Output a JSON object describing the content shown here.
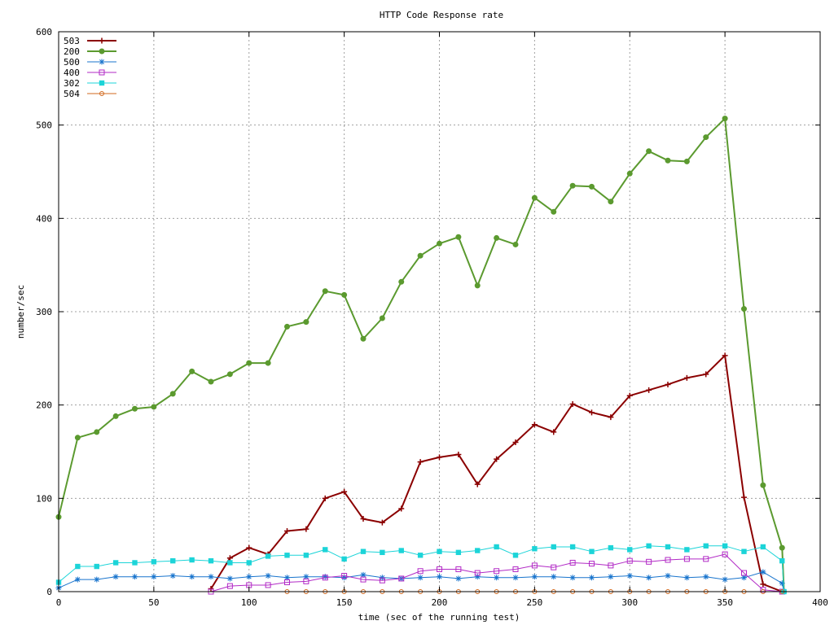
{
  "chart_data": {
    "type": "line",
    "title": "HTTP Code Response rate",
    "xlabel": "time (sec of the running test)",
    "ylabel": "number/sec",
    "xlim": [
      0,
      400
    ],
    "ylim": [
      0,
      600
    ],
    "xticks": [
      0,
      50,
      100,
      150,
      200,
      250,
      300,
      350,
      400
    ],
    "yticks": [
      0,
      100,
      200,
      300,
      400,
      500,
      600
    ],
    "grid": true,
    "legend_position": "top-left",
    "series": [
      {
        "name": "503",
        "color": "#8b0000",
        "marker": "plus",
        "width": 2,
        "points": [
          [
            80,
            3
          ],
          [
            90,
            36
          ],
          [
            100,
            47
          ],
          [
            110,
            40
          ],
          [
            120,
            65
          ],
          [
            130,
            67
          ],
          [
            140,
            100
          ],
          [
            150,
            107
          ],
          [
            160,
            78
          ],
          [
            170,
            74
          ],
          [
            180,
            89
          ],
          [
            190,
            139
          ],
          [
            200,
            144
          ],
          [
            210,
            147
          ],
          [
            220,
            115
          ],
          [
            230,
            142
          ],
          [
            240,
            160
          ],
          [
            250,
            179
          ],
          [
            260,
            171
          ],
          [
            270,
            201
          ],
          [
            280,
            192
          ],
          [
            290,
            187
          ],
          [
            300,
            210
          ],
          [
            310,
            216
          ],
          [
            320,
            222
          ],
          [
            330,
            229
          ],
          [
            340,
            233
          ],
          [
            350,
            253
          ],
          [
            360,
            101
          ],
          [
            370,
            8
          ],
          [
            380,
            0
          ]
        ]
      },
      {
        "name": "200",
        "color": "#5b9a2f",
        "marker": "filled-circle",
        "width": 2,
        "points": [
          [
            0,
            80
          ],
          [
            10,
            165
          ],
          [
            20,
            171
          ],
          [
            30,
            188
          ],
          [
            40,
            196
          ],
          [
            50,
            198
          ],
          [
            60,
            212
          ],
          [
            70,
            236
          ],
          [
            80,
            225
          ],
          [
            90,
            233
          ],
          [
            100,
            245
          ],
          [
            110,
            245
          ],
          [
            120,
            284
          ],
          [
            130,
            289
          ],
          [
            140,
            322
          ],
          [
            150,
            318
          ],
          [
            160,
            271
          ],
          [
            170,
            293
          ],
          [
            180,
            332
          ],
          [
            190,
            360
          ],
          [
            200,
            373
          ],
          [
            210,
            380
          ],
          [
            220,
            328
          ],
          [
            230,
            379
          ],
          [
            240,
            372
          ],
          [
            250,
            422
          ],
          [
            260,
            407
          ],
          [
            270,
            435
          ],
          [
            280,
            434
          ],
          [
            290,
            418
          ],
          [
            300,
            448
          ],
          [
            310,
            472
          ],
          [
            320,
            462
          ],
          [
            330,
            461
          ],
          [
            340,
            487
          ],
          [
            350,
            507
          ],
          [
            360,
            303
          ],
          [
            370,
            114
          ],
          [
            380,
            47
          ],
          [
            381,
            0
          ]
        ]
      },
      {
        "name": "500",
        "color": "#1874cd",
        "marker": "asterisk",
        "width": 1,
        "points": [
          [
            0,
            4
          ],
          [
            10,
            13
          ],
          [
            20,
            13
          ],
          [
            30,
            16
          ],
          [
            40,
            16
          ],
          [
            50,
            16
          ],
          [
            60,
            17
          ],
          [
            70,
            16
          ],
          [
            80,
            16
          ],
          [
            90,
            14
          ],
          [
            100,
            16
          ],
          [
            110,
            17
          ],
          [
            120,
            15
          ],
          [
            130,
            16
          ],
          [
            140,
            16
          ],
          [
            150,
            15
          ],
          [
            160,
            18
          ],
          [
            170,
            15
          ],
          [
            180,
            14
          ],
          [
            190,
            15
          ],
          [
            200,
            16
          ],
          [
            210,
            14
          ],
          [
            220,
            16
          ],
          [
            230,
            15
          ],
          [
            240,
            15
          ],
          [
            250,
            16
          ],
          [
            260,
            16
          ],
          [
            270,
            15
          ],
          [
            280,
            15
          ],
          [
            290,
            16
          ],
          [
            300,
            17
          ],
          [
            310,
            15
          ],
          [
            320,
            17
          ],
          [
            330,
            15
          ],
          [
            340,
            16
          ],
          [
            350,
            13
          ],
          [
            360,
            15
          ],
          [
            370,
            21
          ],
          [
            380,
            9
          ],
          [
            381,
            0
          ]
        ]
      },
      {
        "name": "400",
        "color": "#b22ac6",
        "marker": "open-square",
        "width": 1,
        "points": [
          [
            80,
            0
          ],
          [
            90,
            6
          ],
          [
            100,
            7
          ],
          [
            110,
            7
          ],
          [
            120,
            10
          ],
          [
            130,
            11
          ],
          [
            140,
            15
          ],
          [
            150,
            17
          ],
          [
            160,
            13
          ],
          [
            170,
            12
          ],
          [
            180,
            14
          ],
          [
            190,
            22
          ],
          [
            200,
            24
          ],
          [
            210,
            24
          ],
          [
            220,
            20
          ],
          [
            230,
            22
          ],
          [
            240,
            24
          ],
          [
            250,
            28
          ],
          [
            260,
            26
          ],
          [
            270,
            31
          ],
          [
            280,
            30
          ],
          [
            290,
            28
          ],
          [
            300,
            33
          ],
          [
            310,
            32
          ],
          [
            320,
            34
          ],
          [
            330,
            35
          ],
          [
            340,
            35
          ],
          [
            350,
            40
          ],
          [
            360,
            20
          ],
          [
            370,
            2
          ],
          [
            380,
            0
          ]
        ]
      },
      {
        "name": "302",
        "color": "#1cd4d8",
        "marker": "filled-square",
        "width": 1,
        "points": [
          [
            0,
            10
          ],
          [
            10,
            27
          ],
          [
            20,
            27
          ],
          [
            30,
            31
          ],
          [
            40,
            31
          ],
          [
            50,
            32
          ],
          [
            60,
            33
          ],
          [
            70,
            34
          ],
          [
            80,
            33
          ],
          [
            90,
            31
          ],
          [
            100,
            31
          ],
          [
            110,
            38
          ],
          [
            120,
            39
          ],
          [
            130,
            39
          ],
          [
            140,
            45
          ],
          [
            150,
            35
          ],
          [
            160,
            43
          ],
          [
            170,
            42
          ],
          [
            180,
            44
          ],
          [
            190,
            39
          ],
          [
            200,
            43
          ],
          [
            210,
            42
          ],
          [
            220,
            44
          ],
          [
            230,
            48
          ],
          [
            240,
            39
          ],
          [
            250,
            46
          ],
          [
            260,
            48
          ],
          [
            270,
            48
          ],
          [
            280,
            43
          ],
          [
            290,
            47
          ],
          [
            300,
            45
          ],
          [
            310,
            49
          ],
          [
            320,
            48
          ],
          [
            330,
            45
          ],
          [
            340,
            49
          ],
          [
            350,
            49
          ],
          [
            360,
            43
          ],
          [
            370,
            48
          ],
          [
            380,
            33
          ],
          [
            381,
            0
          ]
        ]
      },
      {
        "name": "504",
        "color": "#d2691e",
        "marker": "open-circle",
        "width": 1,
        "points": [
          [
            120,
            0
          ],
          [
            130,
            0
          ],
          [
            140,
            0
          ],
          [
            150,
            0
          ],
          [
            160,
            0
          ],
          [
            170,
            0
          ],
          [
            180,
            0
          ],
          [
            190,
            0
          ],
          [
            200,
            0
          ],
          [
            210,
            0
          ],
          [
            220,
            0
          ],
          [
            230,
            0
          ],
          [
            240,
            0
          ],
          [
            250,
            0
          ],
          [
            260,
            0
          ],
          [
            270,
            0
          ],
          [
            280,
            0
          ],
          [
            290,
            0
          ],
          [
            300,
            0
          ],
          [
            310,
            0
          ],
          [
            320,
            0
          ],
          [
            330,
            0
          ],
          [
            340,
            0
          ],
          [
            350,
            0
          ],
          [
            360,
            0
          ],
          [
            370,
            0
          ],
          [
            380,
            0
          ]
        ]
      }
    ]
  }
}
